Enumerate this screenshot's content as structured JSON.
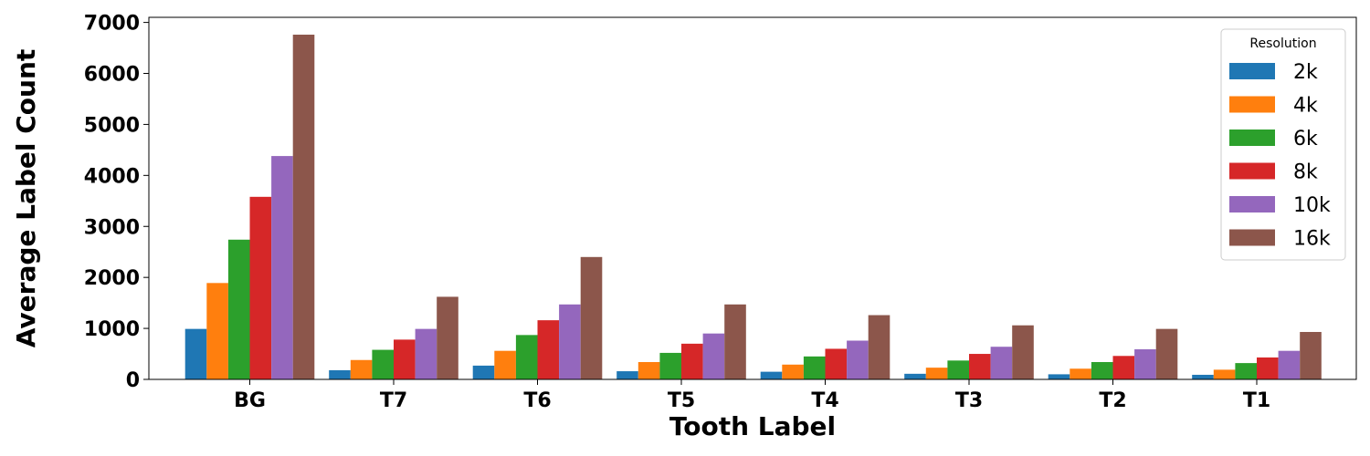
{
  "chart_data": {
    "type": "bar",
    "xlabel": "Tooth Label",
    "ylabel": "Average Label Count",
    "ylim": [
      0,
      7100
    ],
    "yticks": [
      0,
      1000,
      2000,
      3000,
      4000,
      5000,
      6000,
      7000
    ],
    "categories": [
      "BG",
      "T7",
      "T6",
      "T5",
      "T4",
      "T3",
      "T2",
      "T1"
    ],
    "legend": {
      "title": "Resolution",
      "position": "top-right"
    },
    "series": [
      {
        "name": "2k",
        "color": "#1f77b4",
        "values": [
          990,
          180,
          270,
          160,
          150,
          110,
          100,
          90
        ]
      },
      {
        "name": "4k",
        "color": "#ff7f0e",
        "values": [
          1890,
          380,
          560,
          340,
          290,
          230,
          210,
          190
        ]
      },
      {
        "name": "6k",
        "color": "#2ca02c",
        "values": [
          2740,
          580,
          870,
          520,
          450,
          370,
          340,
          320
        ]
      },
      {
        "name": "8k",
        "color": "#d62728",
        "values": [
          3580,
          780,
          1160,
          700,
          600,
          500,
          460,
          430
        ]
      },
      {
        "name": "10k",
        "color": "#9467bd",
        "values": [
          4380,
          990,
          1470,
          900,
          760,
          640,
          590,
          560
        ]
      },
      {
        "name": "16k",
        "color": "#8c564b",
        "values": [
          6760,
          1620,
          2400,
          1470,
          1260,
          1060,
          990,
          930
        ]
      }
    ]
  }
}
